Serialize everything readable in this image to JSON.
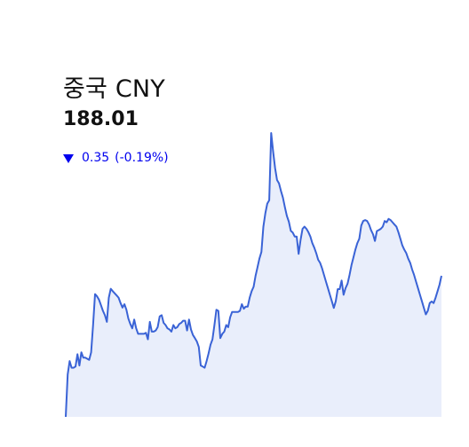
{
  "quote": {
    "title": "중국 CNY",
    "price": "188.01",
    "change_abs": "0.35",
    "change_pct": "(-0.19%)",
    "direction": "down",
    "direction_icon": "down-triangle-icon"
  },
  "colors": {
    "line": "#3a63d6",
    "area": "#e9eefb",
    "down": "#0000ee",
    "text": "#111111"
  },
  "chart_data": {
    "type": "area",
    "values": [
      0.0,
      25.5,
      33.6,
      29.6,
      29.6,
      30.3,
      37.7,
      30.9,
      38.9,
      35.6,
      35.6,
      35.0,
      34.3,
      38.9,
      55.4,
      73.9,
      72.5,
      70.5,
      67.2,
      63.8,
      61.2,
      57.2,
      71.8,
      77.1,
      75.7,
      74.4,
      73.1,
      71.8,
      68.5,
      65.8,
      67.8,
      64.5,
      59.2,
      55.9,
      53.3,
      58.6,
      53.3,
      50.0,
      50.0,
      50.0,
      50.0,
      50.6,
      46.7,
      57.2,
      51.3,
      51.3,
      52.0,
      54.0,
      60.5,
      61.2,
      56.6,
      55.3,
      53.3,
      52.6,
      51.3,
      55.3,
      53.3,
      54.0,
      55.9,
      56.6,
      57.9,
      57.9,
      52.0,
      58.6,
      52.6,
      49.3,
      47.4,
      45.4,
      42.1,
      30.9,
      30.3,
      29.6,
      33.6,
      38.2,
      43.4,
      46.7,
      55.3,
      64.5,
      63.8,
      47.4,
      50.0,
      51.3,
      55.3,
      54.0,
      59.9,
      63.2,
      63.2,
      63.2,
      63.2,
      63.8,
      67.8,
      65.1,
      66.4,
      66.4,
      71.8,
      75.7,
      78.3,
      84.9,
      90.1,
      95.4,
      99.3,
      114.5,
      122.5,
      128.4,
      130.4,
      170.9,
      159.7,
      149.8,
      142.6,
      140.6,
      136.0,
      132.0,
      126.1,
      120.9,
      117.5,
      112.0,
      110.9,
      108.6,
      108.6,
      98.1,
      106.6,
      113.2,
      114.5,
      113.2,
      111.2,
      108.6,
      104.6,
      101.9,
      98.6,
      94.6,
      92.7,
      89.4,
      85.4,
      81.4,
      77.5,
      73.5,
      69.6,
      65.6,
      69.6,
      76.9,
      76.9,
      82.1,
      73.5,
      77.5,
      80.2,
      85.4,
      91.4,
      96.0,
      100.7,
      104.6,
      107.3,
      115.2,
      117.9,
      118.5,
      117.9,
      115.8,
      112.5,
      110.0,
      105.9,
      111.9,
      112.5,
      113.2,
      114.5,
      117.9,
      117.2,
      119.2,
      118.5,
      117.2,
      115.8,
      114.5,
      111.2,
      107.3,
      103.3,
      100.7,
      98.7,
      95.4,
      92.7,
      88.7,
      85.4,
      81.4,
      77.5,
      73.5,
      69.6,
      65.6,
      61.7,
      63.8,
      68.5,
      69.5,
      68.5,
      71.8,
      75.7,
      79.6,
      84.9
    ],
    "ylim": [
      0,
      170.9
    ],
    "grid": false,
    "legend": "none"
  }
}
